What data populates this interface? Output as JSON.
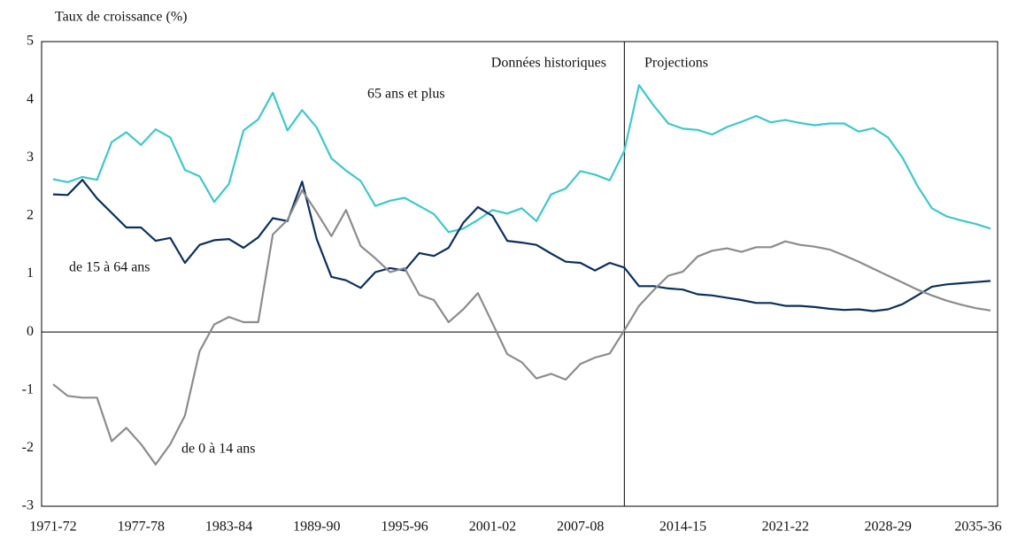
{
  "chart_data": {
    "type": "line",
    "y_label": "Taux de croissance (%)",
    "annotations": [
      "Données historiques",
      "Projections"
    ],
    "categories": [
      "1971-72",
      null,
      null,
      null,
      null,
      null,
      "1977-78",
      null,
      null,
      null,
      null,
      null,
      "1983-84",
      null,
      null,
      null,
      null,
      null,
      "1989-90",
      null,
      null,
      null,
      null,
      null,
      "1995-96",
      null,
      null,
      null,
      null,
      null,
      "2001-02",
      null,
      null,
      null,
      null,
      null,
      "2007-08",
      null,
      null,
      null,
      null,
      null,
      null,
      "2014-15",
      null,
      null,
      null,
      null,
      null,
      null,
      "2021-22",
      null,
      null,
      null,
      null,
      null,
      null,
      "2028-29",
      null,
      null,
      null,
      null,
      null,
      null,
      "2035-36"
    ],
    "series": [
      {
        "name": "65 ans et plus",
        "color": "#3ec8cc",
        "values": [
          2.63,
          2.58,
          2.67,
          2.62,
          3.27,
          3.44,
          3.22,
          3.49,
          3.35,
          2.79,
          2.68,
          2.24,
          2.55,
          3.47,
          3.66,
          4.12,
          3.47,
          3.82,
          3.52,
          2.99,
          2.78,
          2.6,
          2.17,
          2.26,
          2.31,
          2.17,
          2.03,
          1.72,
          1.78,
          1.93,
          2.1,
          2.04,
          2.13,
          1.91,
          2.37,
          2.47,
          2.77,
          2.71,
          2.61,
          3.12,
          4.25,
          3.9,
          3.59,
          3.5,
          3.48,
          3.4,
          3.53,
          3.62,
          3.72,
          3.61,
          3.65,
          3.6,
          3.56,
          3.59,
          3.59,
          3.45,
          3.51,
          3.35,
          3.0,
          2.52,
          2.13,
          1.99,
          1.92,
          1.86,
          1.78
        ]
      },
      {
        "name": "de 15 à 64 ans",
        "color": "#0b2f5e",
        "values": [
          2.37,
          2.36,
          2.62,
          2.3,
          2.05,
          1.8,
          1.8,
          1.57,
          1.62,
          1.19,
          1.5,
          1.58,
          1.6,
          1.45,
          1.63,
          1.96,
          1.91,
          2.59,
          1.6,
          0.95,
          0.89,
          0.76,
          1.03,
          1.1,
          1.06,
          1.36,
          1.31,
          1.45,
          1.88,
          2.15,
          2.0,
          1.57,
          1.54,
          1.5,
          1.35,
          1.21,
          1.19,
          1.06,
          1.19,
          1.11,
          0.79,
          0.79,
          0.75,
          0.73,
          0.65,
          0.63,
          0.59,
          0.55,
          0.5,
          0.5,
          0.45,
          0.45,
          0.43,
          0.4,
          0.38,
          0.39,
          0.36,
          0.39,
          0.48,
          0.63,
          0.78,
          0.82,
          0.84,
          0.86,
          0.88
        ]
      },
      {
        "name": "de 0 à 14 ans",
        "color": "#8c8c8c",
        "values": [
          -0.9,
          -1.1,
          -1.13,
          -1.13,
          -1.88,
          -1.65,
          -1.93,
          -2.28,
          -1.93,
          -1.44,
          -0.33,
          0.13,
          0.26,
          0.17,
          0.17,
          1.68,
          1.93,
          2.44,
          2.06,
          1.65,
          2.1,
          1.48,
          1.27,
          1.03,
          1.1,
          0.64,
          0.55,
          0.17,
          0.39,
          0.67,
          0.15,
          -0.38,
          -0.52,
          -0.8,
          -0.72,
          -0.82,
          -0.55,
          -0.44,
          -0.37,
          0.03,
          0.45,
          0.72,
          0.97,
          1.04,
          1.3,
          1.4,
          1.44,
          1.38,
          1.46,
          1.46,
          1.56,
          1.5,
          1.47,
          1.42,
          1.32,
          1.21,
          1.09,
          0.97,
          0.85,
          0.73,
          0.63,
          0.54,
          0.47,
          0.41,
          0.37
        ]
      }
    ],
    "ylim": [
      -3,
      5
    ],
    "yticks": [
      -3,
      -2,
      -1,
      0,
      1,
      2,
      3,
      4,
      5
    ]
  }
}
